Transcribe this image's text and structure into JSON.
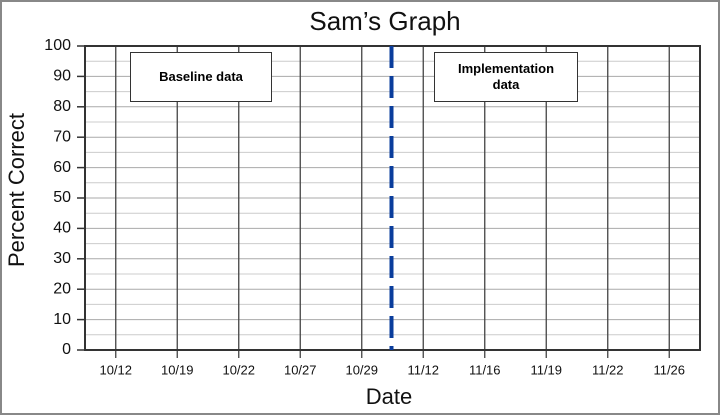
{
  "chart_data": {
    "type": "line",
    "title": "Sam’s Graph",
    "x_label": "Date",
    "y_label": "Percent Correct",
    "categories": [
      "10/12",
      "10/19",
      "10/22",
      "10/27",
      "10/29",
      "11/12",
      "11/16",
      "11/19",
      "11/22",
      "11/26"
    ],
    "ylim": [
      0,
      100
    ],
    "yticks": [
      0,
      10,
      20,
      30,
      40,
      50,
      60,
      70,
      80,
      90,
      100
    ],
    "yminor": [
      5,
      15,
      25,
      35,
      45,
      55,
      65,
      75,
      85,
      95
    ],
    "grid": true,
    "phase_line_color": "#0a3d9c",
    "annotations": [
      "Baseline data",
      "Implementation data"
    ]
  }
}
